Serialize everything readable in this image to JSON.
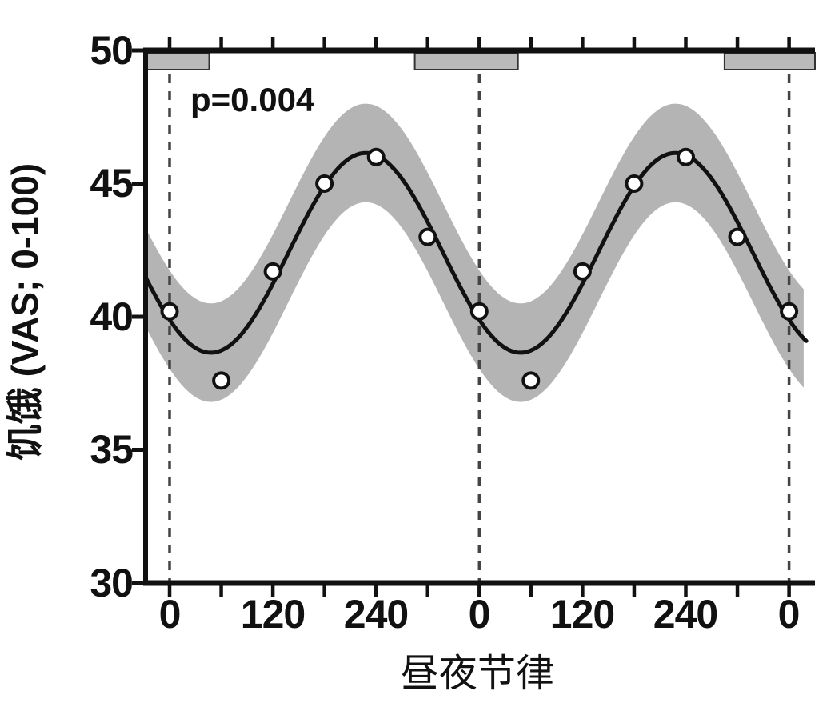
{
  "chart_data": {
    "type": "line",
    "title": "",
    "xlabel": "昼夜节律",
    "ylabel": "饥饿 (VAS; 0-100)",
    "annotation": "p=0.004",
    "legend": "none",
    "grid": "off",
    "ylim": [
      30,
      50
    ],
    "xlim_deg": [
      -28,
      740
    ],
    "y_tick_values": [
      50,
      45,
      40,
      35,
      30
    ],
    "y_tick_labels": [
      "50",
      "45",
      "40",
      "35",
      "30"
    ],
    "x_labeled_tick_deg": [
      0,
      120,
      240,
      360,
      480,
      600,
      720
    ],
    "x_tick_labels": [
      "0",
      "120",
      "240",
      "0",
      "120",
      "240",
      "0"
    ],
    "x_minor_tick_step_deg": 60,
    "points": {
      "x_deg": [
        0,
        60,
        120,
        180,
        240,
        300,
        360,
        420,
        480,
        540,
        600,
        660,
        720
      ],
      "y_vas": [
        40.2,
        37.6,
        41.7,
        45.0,
        46.0,
        43.0,
        40.2,
        37.6,
        41.7,
        45.0,
        46.0,
        43.0,
        40.2
      ]
    },
    "cosinor_fit": {
      "mesor": 42.4,
      "amplitude": 3.75,
      "acrophase_deg": 228,
      "period_deg": 360
    },
    "confidence_band_halfwidth_vas": 1.85,
    "band_xlim_deg": [
      -28,
      738
    ],
    "dashed_vlines_deg": [
      0,
      360,
      720
    ],
    "dark_period_bars_deg": [
      [
        -28,
        46
      ],
      [
        285,
        405
      ],
      [
        645,
        762
      ]
    ],
    "colors": {
      "band": "#b4b4b4",
      "bar_fill": "#bababa",
      "bar_border": "#333333",
      "curve": "#111111",
      "dashed": "#444444",
      "axis": "#111111",
      "point_fill": "#ffffff",
      "point_border": "#111111"
    }
  }
}
